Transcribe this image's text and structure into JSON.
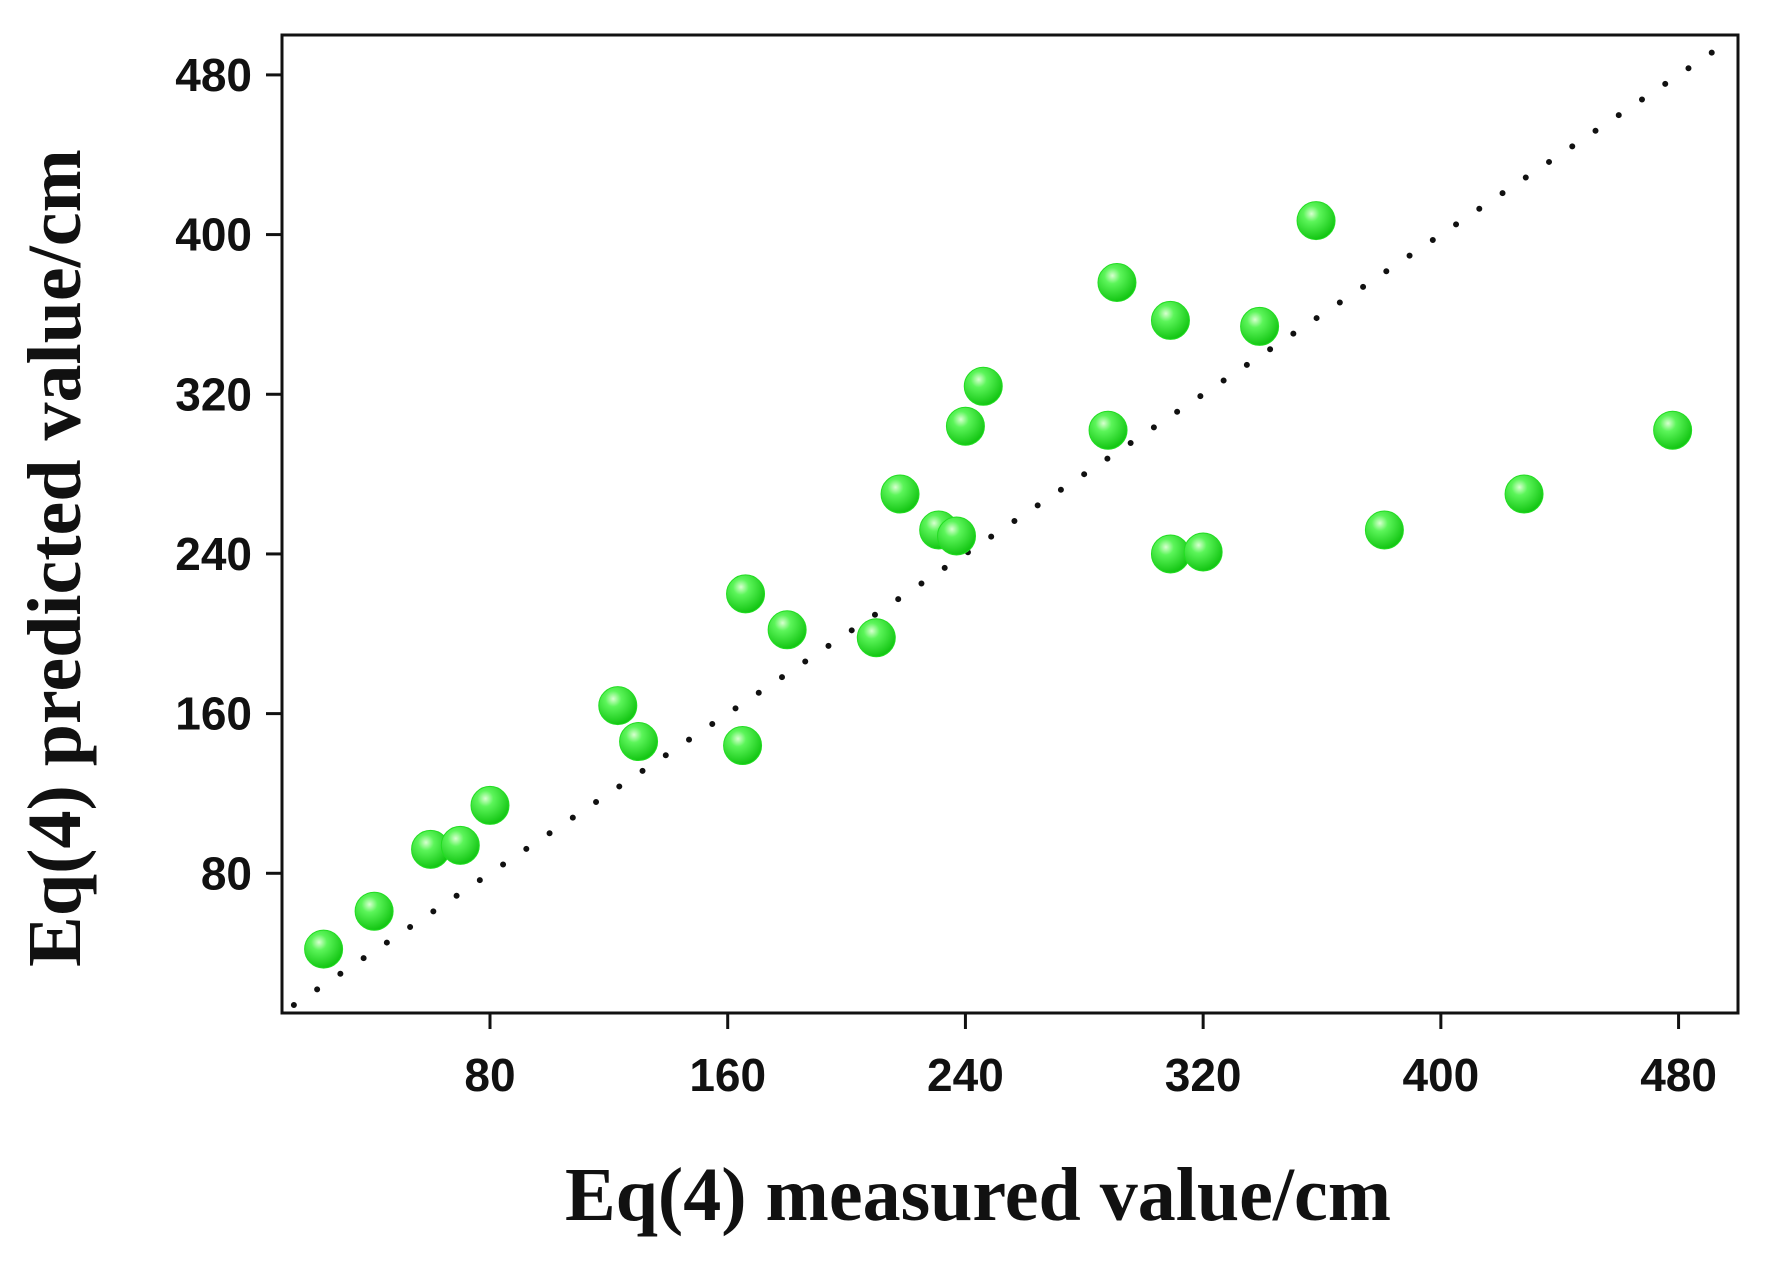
{
  "chart_data": {
    "type": "scatter",
    "title": "",
    "xlabel": "Eq(4) measured value/cm",
    "ylabel": "Eq(4) predicted value/cm",
    "xlim": [
      10,
      500
    ],
    "ylim": [
      10,
      500
    ],
    "xticks": [
      80,
      160,
      240,
      320,
      400,
      480
    ],
    "yticks": [
      80,
      160,
      240,
      320,
      400,
      480
    ],
    "grid": false,
    "reference_line": {
      "name": "y = x",
      "style": "dotted",
      "color": "#111111",
      "from": [
        14,
        14
      ],
      "to": [
        492,
        492
      ]
    },
    "series": [
      {
        "name": "data",
        "color": "#22dd22",
        "points": [
          [
            24,
            42
          ],
          [
            41,
            61
          ],
          [
            60,
            92
          ],
          [
            70,
            94
          ],
          [
            80,
            114
          ],
          [
            123,
            164
          ],
          [
            130,
            146
          ],
          [
            165,
            144
          ],
          [
            166,
            220
          ],
          [
            180,
            202
          ],
          [
            210,
            198
          ],
          [
            218,
            270
          ],
          [
            231,
            252
          ],
          [
            237,
            249
          ],
          [
            240,
            304
          ],
          [
            246,
            324
          ],
          [
            288,
            302
          ],
          [
            291,
            376
          ],
          [
            309,
            240
          ],
          [
            309,
            357
          ],
          [
            320,
            241
          ],
          [
            339,
            354
          ],
          [
            358,
            407
          ],
          [
            381,
            252
          ],
          [
            428,
            270
          ],
          [
            478,
            302
          ]
        ]
      }
    ]
  }
}
